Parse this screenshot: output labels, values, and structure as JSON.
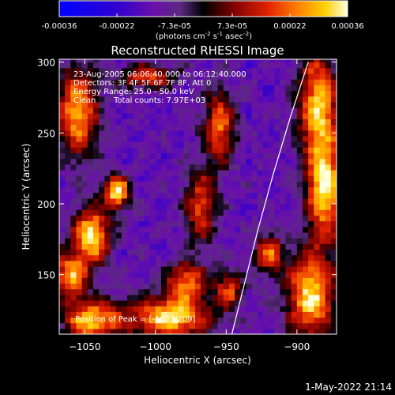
{
  "colorbar": {
    "tick_labels": [
      "-0.00036",
      "-0.00022",
      "-7.3e-05",
      "7.3e-05",
      "0.00022",
      "0.00036"
    ],
    "units_main": "(photons cm",
    "units_sup1": "-2",
    "units_s": " s",
    "units_sup2": "-1",
    "units_asec": " asec",
    "units_sup3": "-2",
    "units_close": ")",
    "colors": [
      "#0000ff",
      "#5a00a8",
      "#8a2a9a",
      "#000000",
      "#8a0000",
      "#ff4500",
      "#ffd000",
      "#ffffd0"
    ]
  },
  "footer": {
    "timestamp": "1-May-2022 21:14"
  },
  "chart_data": {
    "type": "heatmap",
    "title": "Reconstructed RHESSI Image",
    "xlabel": "Heliocentric X (arcsec)",
    "ylabel": "Heliocentric Y (arcsec)",
    "xlim": [
      -1068,
      -872
    ],
    "ylim": [
      108,
      302
    ],
    "x_ticks": [
      -1050,
      -1000,
      -950,
      -900
    ],
    "x_tick_labels": [
      "−1050",
      "−1000",
      "−950",
      "−900"
    ],
    "y_ticks": [
      150,
      200,
      250,
      300
    ],
    "y_tick_labels": [
      "150",
      "200",
      "250",
      "300"
    ],
    "value_range": [
      -0.00036,
      0.00036
    ],
    "peak": [
      -1027,
      209
    ],
    "annotations": {
      "time_range": "23-Aug-2005 06:06:40.000 to 06:12:40.000",
      "detectors": "Detectors: 3F 4F 5F 6F 7F 8F, Att 0",
      "energy": "Energy Range: 25.0 - 50.0 keV",
      "clean": "Clean",
      "counts": "Total counts: 7.97E+03",
      "peak_label": "Position of Peak = [-1027,209]"
    },
    "limb_line": [
      [
        -946,
        108
      ],
      [
        -938,
        140
      ],
      [
        -928,
        180
      ],
      [
        -917,
        220
      ],
      [
        -905,
        260
      ],
      [
        -892,
        300
      ]
    ],
    "bright_regions": [
      {
        "x": -1055,
        "y": 265,
        "amp": 0.00028,
        "sx": 10,
        "sy": 22
      },
      {
        "x": -1027,
        "y": 209,
        "amp": 0.00036,
        "sx": 6,
        "sy": 8
      },
      {
        "x": -1045,
        "y": 178,
        "amp": 0.00034,
        "sx": 9,
        "sy": 14
      },
      {
        "x": -1060,
        "y": 150,
        "amp": 0.00026,
        "sx": 8,
        "sy": 12
      },
      {
        "x": -990,
        "y": 120,
        "amp": 0.00034,
        "sx": 20,
        "sy": 10
      },
      {
        "x": -1045,
        "y": 118,
        "amp": 0.0003,
        "sx": 14,
        "sy": 10
      },
      {
        "x": -885,
        "y": 270,
        "amp": 0.0003,
        "sx": 10,
        "sy": 26
      },
      {
        "x": -880,
        "y": 210,
        "amp": 0.00034,
        "sx": 9,
        "sy": 24
      },
      {
        "x": -890,
        "y": 135,
        "amp": 0.00032,
        "sx": 12,
        "sy": 22
      },
      {
        "x": -955,
        "y": 255,
        "amp": 0.00022,
        "sx": 8,
        "sy": 18
      },
      {
        "x": -968,
        "y": 198,
        "amp": 0.00018,
        "sx": 8,
        "sy": 18
      },
      {
        "x": -978,
        "y": 145,
        "amp": 0.00022,
        "sx": 10,
        "sy": 10
      },
      {
        "x": -948,
        "y": 140,
        "amp": 0.00016,
        "sx": 7,
        "sy": 10
      },
      {
        "x": -1005,
        "y": 290,
        "amp": 0.00018,
        "sx": 14,
        "sy": 6
      },
      {
        "x": -920,
        "y": 165,
        "amp": 0.0002,
        "sx": 7,
        "sy": 10
      }
    ]
  }
}
